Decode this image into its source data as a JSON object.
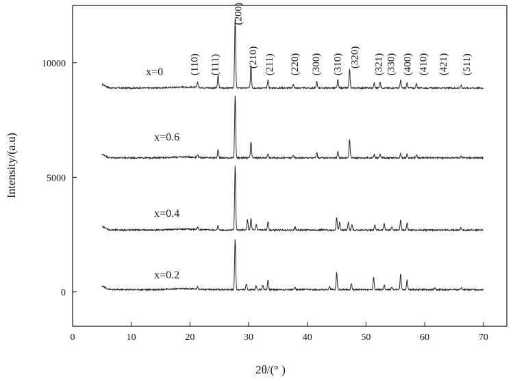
{
  "chart_data": {
    "type": "line",
    "xlabel": "2θ/(° )",
    "ylabel": "Intensity/(a.u)",
    "xlim": [
      0,
      74
    ],
    "ylim": [
      -1500,
      12500
    ],
    "x_ticks": [
      0,
      10,
      20,
      30,
      40,
      50,
      60,
      70
    ],
    "y_ticks": [
      0,
      5000,
      10000
    ],
    "grid": false,
    "legend": "none",
    "line_color": "#222222",
    "series": [
      {
        "name": "x=0",
        "baseline": 8900,
        "x_range": [
          5,
          70
        ],
        "peaks": [
          {
            "x": 21.3,
            "h": 250
          },
          {
            "x": 24.8,
            "h": 550
          },
          {
            "x": 27.7,
            "h": 3000
          },
          {
            "x": 30.4,
            "h": 1000
          },
          {
            "x": 33.3,
            "h": 350
          },
          {
            "x": 37.6,
            "h": 150
          },
          {
            "x": 41.6,
            "h": 300
          },
          {
            "x": 45.2,
            "h": 350
          },
          {
            "x": 47.2,
            "h": 800
          },
          {
            "x": 51.4,
            "h": 220
          },
          {
            "x": 52.4,
            "h": 250
          },
          {
            "x": 55.9,
            "h": 330
          },
          {
            "x": 57.0,
            "h": 200
          },
          {
            "x": 58.6,
            "h": 200
          },
          {
            "x": 66.2,
            "h": 120
          }
        ]
      },
      {
        "name": "x=0.6",
        "baseline": 5850,
        "x_range": [
          5,
          70
        ],
        "peaks": [
          {
            "x": 21.3,
            "h": 120
          },
          {
            "x": 24.8,
            "h": 370
          },
          {
            "x": 27.7,
            "h": 2700
          },
          {
            "x": 30.4,
            "h": 700
          },
          {
            "x": 33.3,
            "h": 200
          },
          {
            "x": 37.6,
            "h": 120
          },
          {
            "x": 41.6,
            "h": 230
          },
          {
            "x": 45.2,
            "h": 260
          },
          {
            "x": 47.2,
            "h": 830
          },
          {
            "x": 51.4,
            "h": 140
          },
          {
            "x": 52.4,
            "h": 160
          },
          {
            "x": 55.9,
            "h": 200
          },
          {
            "x": 57.0,
            "h": 150
          },
          {
            "x": 58.6,
            "h": 140
          },
          {
            "x": 66.2,
            "h": 80
          }
        ]
      },
      {
        "name": "x=0.4",
        "baseline": 2700,
        "x_range": [
          5,
          70
        ],
        "peaks": [
          {
            "x": 21.3,
            "h": 100
          },
          {
            "x": 24.8,
            "h": 200
          },
          {
            "x": 27.7,
            "h": 2800
          },
          {
            "x": 29.8,
            "h": 450
          },
          {
            "x": 30.4,
            "h": 500
          },
          {
            "x": 31.3,
            "h": 250
          },
          {
            "x": 33.3,
            "h": 380
          },
          {
            "x": 37.9,
            "h": 130
          },
          {
            "x": 45.0,
            "h": 550
          },
          {
            "x": 45.5,
            "h": 350
          },
          {
            "x": 47.0,
            "h": 350
          },
          {
            "x": 47.6,
            "h": 230
          },
          {
            "x": 51.5,
            "h": 230
          },
          {
            "x": 53.1,
            "h": 280
          },
          {
            "x": 54.4,
            "h": 150
          },
          {
            "x": 55.9,
            "h": 440
          },
          {
            "x": 57.0,
            "h": 300
          },
          {
            "x": 66.2,
            "h": 100
          }
        ]
      },
      {
        "name": "x=0.2",
        "baseline": 100,
        "x_range": [
          5,
          70
        ],
        "peaks": [
          {
            "x": 21.3,
            "h": 100
          },
          {
            "x": 27.7,
            "h": 2200
          },
          {
            "x": 29.6,
            "h": 250
          },
          {
            "x": 31.3,
            "h": 150
          },
          {
            "x": 32.4,
            "h": 200
          },
          {
            "x": 33.3,
            "h": 420
          },
          {
            "x": 37.9,
            "h": 120
          },
          {
            "x": 43.8,
            "h": 130
          },
          {
            "x": 45.0,
            "h": 750
          },
          {
            "x": 47.5,
            "h": 280
          },
          {
            "x": 51.3,
            "h": 520
          },
          {
            "x": 53.1,
            "h": 200
          },
          {
            "x": 54.4,
            "h": 120
          },
          {
            "x": 55.9,
            "h": 720
          },
          {
            "x": 57.0,
            "h": 420
          },
          {
            "x": 61.7,
            "h": 80
          },
          {
            "x": 66.2,
            "h": 80
          }
        ]
      }
    ],
    "series_labels": [
      {
        "text": "x=0",
        "x": 12.5,
        "y": 9450
      },
      {
        "text": "x=0.6",
        "x": 13.9,
        "y": 6600
      },
      {
        "text": "x=0.4",
        "x": 13.9,
        "y": 3280
      },
      {
        "text": "x=0.2",
        "x": 13.9,
        "y": 590
      }
    ],
    "peak_labels": [
      {
        "text": "(110)",
        "x": 21.3,
        "y": 9450
      },
      {
        "text": "(111)",
        "x": 24.8,
        "y": 9450
      },
      {
        "text": "(200)",
        "x": 28.8,
        "y": 11650
      },
      {
        "text": "(210)",
        "x": 31.3,
        "y": 9750
      },
      {
        "text": "(211)",
        "x": 34.1,
        "y": 9450
      },
      {
        "text": "(220)",
        "x": 38.4,
        "y": 9450
      },
      {
        "text": "(300)",
        "x": 42.0,
        "y": 9450
      },
      {
        "text": "(310)",
        "x": 45.7,
        "y": 9450
      },
      {
        "text": "(320)",
        "x": 48.6,
        "y": 9750
      },
      {
        "text": "(321)",
        "x": 52.7,
        "y": 9450
      },
      {
        "text": "(330)",
        "x": 54.8,
        "y": 9450
      },
      {
        "text": "(400)",
        "x": 57.6,
        "y": 9450
      },
      {
        "text": "(410)",
        "x": 60.3,
        "y": 9450
      },
      {
        "text": "(421)",
        "x": 63.7,
        "y": 9450
      },
      {
        "text": "(511)",
        "x": 67.7,
        "y": 9450
      }
    ]
  }
}
